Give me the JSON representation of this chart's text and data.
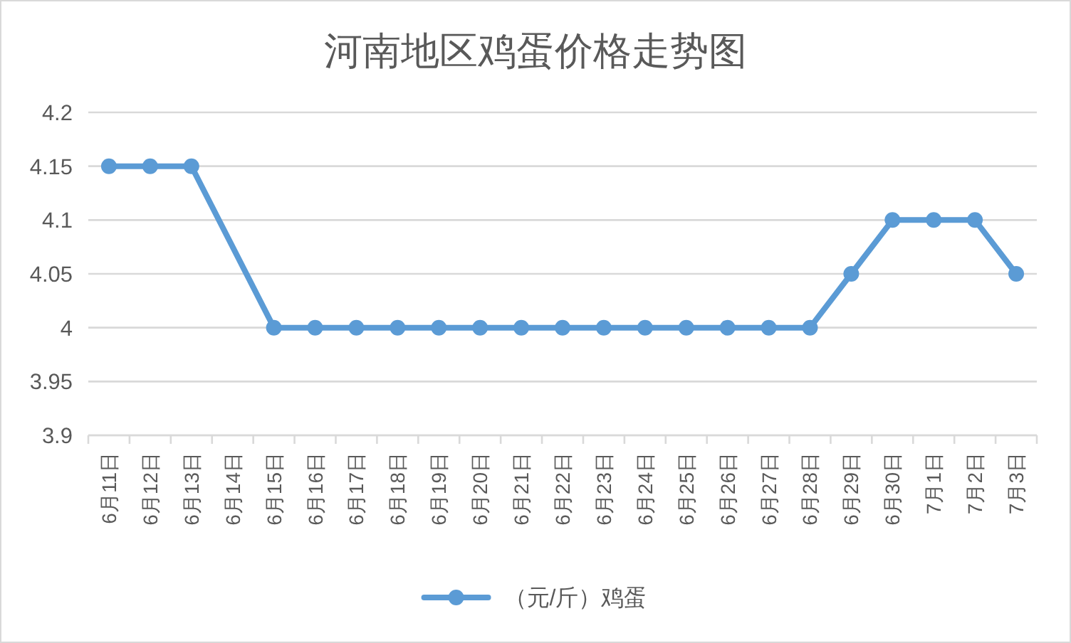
{
  "chart_data": {
    "type": "line",
    "title": "河南地区鸡蛋价格走势图",
    "categories": [
      "6月11日",
      "6月12日",
      "6月13日",
      "6月14日",
      "6月15日",
      "6月16日",
      "6月17日",
      "6月18日",
      "6月19日",
      "6月20日",
      "6月21日",
      "6月22日",
      "6月23日",
      "6月24日",
      "6月25日",
      "6月26日",
      "6月27日",
      "6月28日",
      "6月29日",
      "6月30日",
      "7月1日",
      "7月2日",
      "7月3日"
    ],
    "series": [
      {
        "name": "（元/斤）鸡蛋",
        "color": "#5b9bd5",
        "values": [
          4.15,
          4.15,
          4.15,
          null,
          4.0,
          4.0,
          4.0,
          4.0,
          4.0,
          4.0,
          4.0,
          4.0,
          4.0,
          4.0,
          4.0,
          4.0,
          4.0,
          4.0,
          4.05,
          4.1,
          4.1,
          4.1,
          4.05
        ]
      }
    ],
    "ylim": [
      3.9,
      4.2
    ],
    "yticks": [
      3.9,
      3.95,
      4,
      4.05,
      4.1,
      4.15,
      4.2
    ],
    "grid": "y",
    "legend": "bottom",
    "marker": "circle",
    "line_style": "solid"
  }
}
